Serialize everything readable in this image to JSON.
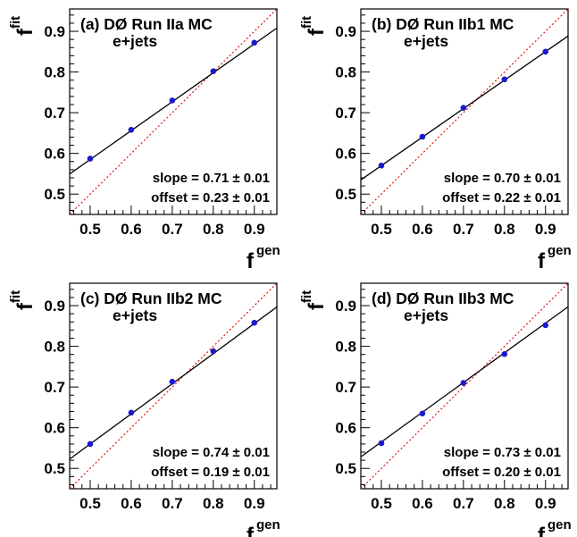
{
  "chart_data": [
    {
      "type": "scatter",
      "title": "(a) DØ Run IIa MC",
      "subtitle": "e+jets",
      "xlabel_base": "f",
      "xlabel_sup": "gen",
      "ylabel_base": "f",
      "ylabel_sup": "fit",
      "xlim": [
        0.45,
        0.955
      ],
      "ylim": [
        0.45,
        0.955
      ],
      "xticks": [
        "0.5",
        "0.6",
        "0.7",
        "0.8",
        "0.9"
      ],
      "yticks": [
        "0.5",
        "0.6",
        "0.7",
        "0.8",
        "0.9"
      ],
      "x": [
        0.5,
        0.6,
        0.7,
        0.8,
        0.9
      ],
      "y": [
        0.587,
        0.658,
        0.73,
        0.802,
        0.872
      ],
      "fit": {
        "slope": 0.71,
        "offset": 0.23
      },
      "slope_label": "slope = 0.71 ± 0.01",
      "offset_label": "offset = 0.23 ± 0.01"
    },
    {
      "type": "scatter",
      "title": "(b) DØ Run IIb1 MC",
      "subtitle": "e+jets",
      "xlabel_base": "f",
      "xlabel_sup": "gen",
      "ylabel_base": "f",
      "ylabel_sup": "fit",
      "xlim": [
        0.45,
        0.955
      ],
      "ylim": [
        0.45,
        0.955
      ],
      "xticks": [
        "0.5",
        "0.6",
        "0.7",
        "0.8",
        "0.9"
      ],
      "yticks": [
        "0.5",
        "0.6",
        "0.7",
        "0.8",
        "0.9"
      ],
      "x": [
        0.5,
        0.6,
        0.7,
        0.8,
        0.9
      ],
      "y": [
        0.57,
        0.641,
        0.712,
        0.782,
        0.85
      ],
      "fit": {
        "slope": 0.7,
        "offset": 0.22
      },
      "slope_label": "slope = 0.70 ± 0.01",
      "offset_label": "offset = 0.22 ± 0.01"
    },
    {
      "type": "scatter",
      "title": "(c) DØ Run IIb2 MC",
      "subtitle": "e+jets",
      "xlabel_base": "f",
      "xlabel_sup": "gen",
      "ylabel_base": "f",
      "ylabel_sup": "fit",
      "xlim": [
        0.45,
        0.955
      ],
      "ylim": [
        0.45,
        0.955
      ],
      "xticks": [
        "0.5",
        "0.6",
        "0.7",
        "0.8",
        "0.9"
      ],
      "yticks": [
        "0.5",
        "0.6",
        "0.7",
        "0.8",
        "0.9"
      ],
      "x": [
        0.5,
        0.6,
        0.7,
        0.8,
        0.9
      ],
      "y": [
        0.56,
        0.637,
        0.713,
        0.788,
        0.858
      ],
      "fit": {
        "slope": 0.74,
        "offset": 0.19
      },
      "slope_label": "slope = 0.74 ± 0.01",
      "offset_label": "offset = 0.19 ± 0.01"
    },
    {
      "type": "scatter",
      "title": "(d) DØ Run IIb3 MC",
      "subtitle": "e+jets",
      "xlabel_base": "f",
      "xlabel_sup": "gen",
      "ylabel_base": "f",
      "ylabel_sup": "fit",
      "xlim": [
        0.45,
        0.955
      ],
      "ylim": [
        0.45,
        0.955
      ],
      "xticks": [
        "0.5",
        "0.6",
        "0.7",
        "0.8",
        "0.9"
      ],
      "yticks": [
        "0.5",
        "0.6",
        "0.7",
        "0.8",
        "0.9"
      ],
      "x": [
        0.5,
        0.6,
        0.7,
        0.8,
        0.9
      ],
      "y": [
        0.562,
        0.635,
        0.71,
        0.781,
        0.852
      ],
      "fit": {
        "slope": 0.73,
        "offset": 0.2
      },
      "slope_label": "slope = 0.73 ± 0.01",
      "offset_label": "offset = 0.20 ± 0.01"
    }
  ],
  "colors": {
    "marker": "#1a1acc",
    "fit_line": "#000000",
    "diagonal": "#e00000",
    "frame": "#000000"
  }
}
